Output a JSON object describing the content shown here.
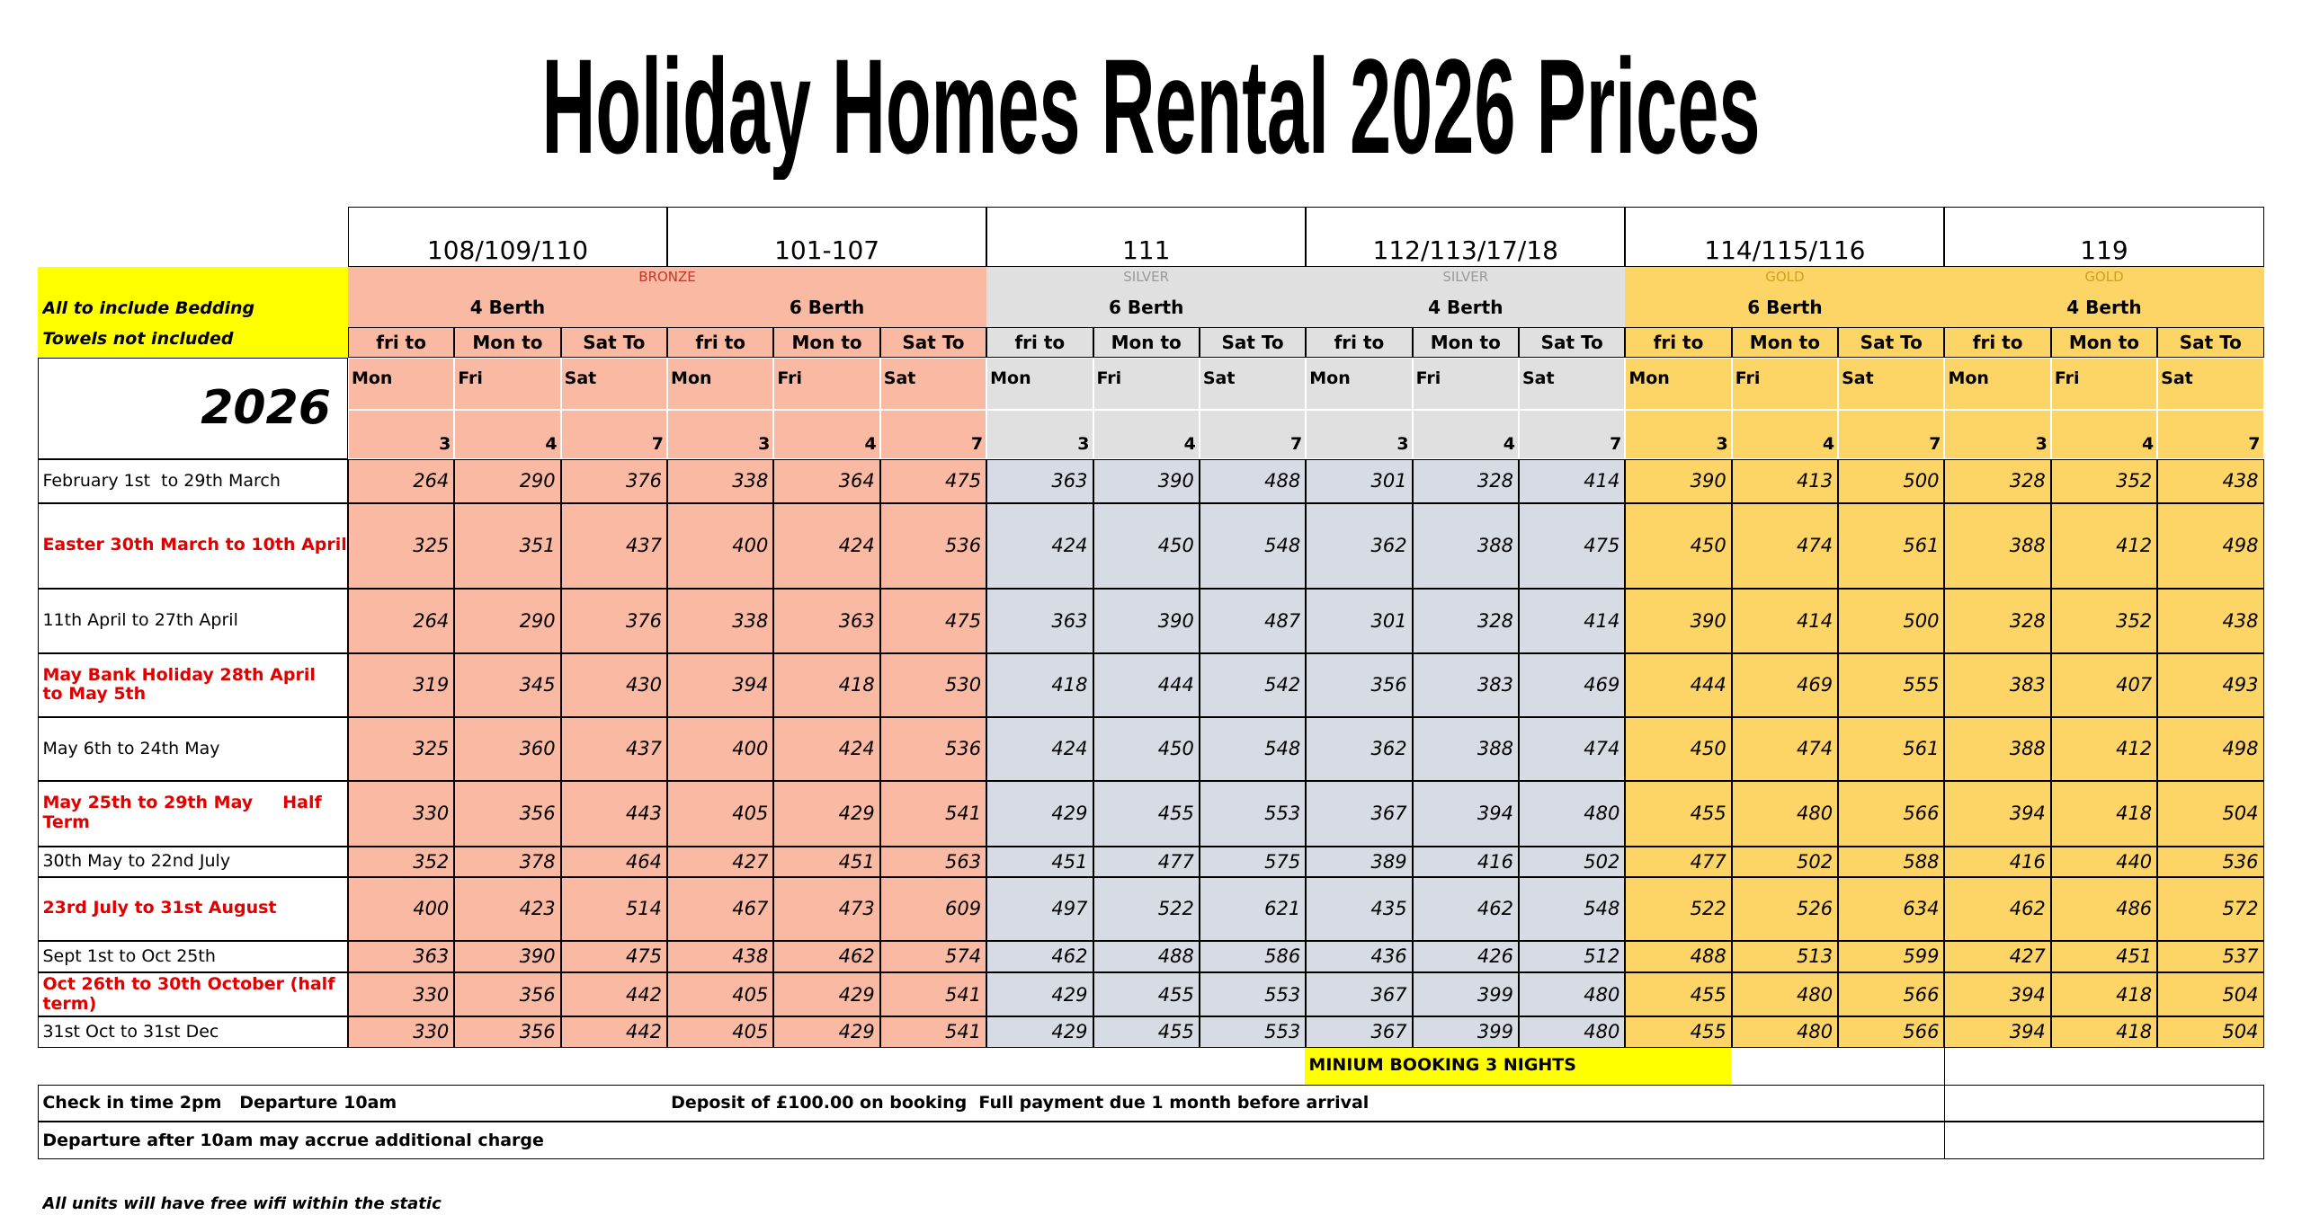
{
  "title": "Holiday Homes Rental 2026 Prices",
  "note_bedding": "All to include Bedding",
  "note_towels": "Towels not included",
  "year": "2026",
  "groups": [
    {
      "grade": "BRONZE",
      "units": [
        {
          "name": "108/109/110",
          "berth": "4 Berth"
        },
        {
          "name": "101-107",
          "berth": "6 Berth"
        }
      ]
    },
    {
      "grade": "SILVER",
      "units": [
        {
          "name": "111",
          "berth": "6 Berth"
        }
      ]
    },
    {
      "grade": "SILVER",
      "units": [
        {
          "name": "112/113/17/18",
          "berth": "4 Berth"
        }
      ]
    },
    {
      "grade": "GOLD",
      "units": [
        {
          "name": "114/115/116",
          "berth": "6 Berth"
        }
      ]
    },
    {
      "grade": "GOLD",
      "units": [
        {
          "name": "119",
          "berth": "4 Berth"
        }
      ]
    }
  ],
  "column_heads": [
    "fri to",
    "Mon to",
    "Sat To"
  ],
  "column_days": [
    "Mon",
    "Fri",
    "Sat"
  ],
  "column_nights": [
    3,
    4,
    7
  ],
  "rows": [
    {
      "period": "February 1st  to 29th March",
      "highlight": false,
      "prices": [
        264,
        290,
        376,
        338,
        364,
        475,
        363,
        390,
        488,
        301,
        328,
        414,
        390,
        413,
        500,
        328,
        352,
        438
      ]
    },
    {
      "period": "Easter 30th March to 10th April",
      "highlight": true,
      "prices": [
        325,
        351,
        437,
        400,
        424,
        536,
        424,
        450,
        548,
        362,
        388,
        475,
        450,
        474,
        561,
        388,
        412,
        498
      ]
    },
    {
      "period": "11th April to 27th April",
      "highlight": false,
      "prices": [
        264,
        290,
        376,
        338,
        363,
        475,
        363,
        390,
        487,
        301,
        328,
        414,
        390,
        414,
        500,
        328,
        352,
        438
      ]
    },
    {
      "period": "May Bank Holiday 28th April  to May 5th",
      "highlight": true,
      "prices": [
        319,
        345,
        430,
        394,
        418,
        530,
        418,
        444,
        542,
        356,
        383,
        469,
        444,
        469,
        555,
        383,
        407,
        493
      ]
    },
    {
      "period": "May 6th to 24th May",
      "highlight": false,
      "prices": [
        325,
        360,
        437,
        400,
        424,
        536,
        424,
        450,
        548,
        362,
        388,
        474,
        450,
        474,
        561,
        388,
        412,
        498
      ]
    },
    {
      "period": "May 25th to 29th May     Half Term",
      "highlight": true,
      "prices": [
        330,
        356,
        443,
        405,
        429,
        541,
        429,
        455,
        553,
        367,
        394,
        480,
        455,
        480,
        566,
        394,
        418,
        504
      ]
    },
    {
      "period": "30th May to 22nd July",
      "highlight": false,
      "prices": [
        352,
        378,
        464,
        427,
        451,
        563,
        451,
        477,
        575,
        389,
        416,
        502,
        477,
        502,
        588,
        416,
        440,
        536
      ]
    },
    {
      "period": "23rd July to 31st August",
      "highlight": true,
      "prices": [
        400,
        423,
        514,
        467,
        473,
        609,
        497,
        522,
        621,
        435,
        462,
        548,
        522,
        526,
        634,
        462,
        486,
        572
      ]
    },
    {
      "period": "Sept 1st to Oct 25th",
      "highlight": false,
      "prices": [
        363,
        390,
        475,
        438,
        462,
        574,
        462,
        488,
        586,
        436,
        426,
        512,
        488,
        513,
        599,
        427,
        451,
        537
      ]
    },
    {
      "period": "Oct 26th to 30th October (half term)",
      "highlight": true,
      "prices": [
        330,
        356,
        442,
        405,
        429,
        541,
        429,
        455,
        553,
        367,
        399,
        480,
        455,
        480,
        566,
        394,
        418,
        504
      ]
    },
    {
      "period": "31st Oct to 31st Dec",
      "highlight": false,
      "prices": [
        330,
        356,
        442,
        405,
        429,
        541,
        429,
        455,
        553,
        367,
        399,
        480,
        455,
        480,
        566,
        394,
        418,
        504
      ]
    }
  ],
  "minimum_booking": "MINIUM BOOKING 3 NIGHTS",
  "check_in": "Check in time 2pm   Departure 10am",
  "deposit": "Deposit of £100.00 on booking  Full payment due 1 month before arrival",
  "departure_note": "Departure after 10am may accrue additional charge",
  "wifi_note": "All units will have free wifi within the static"
}
